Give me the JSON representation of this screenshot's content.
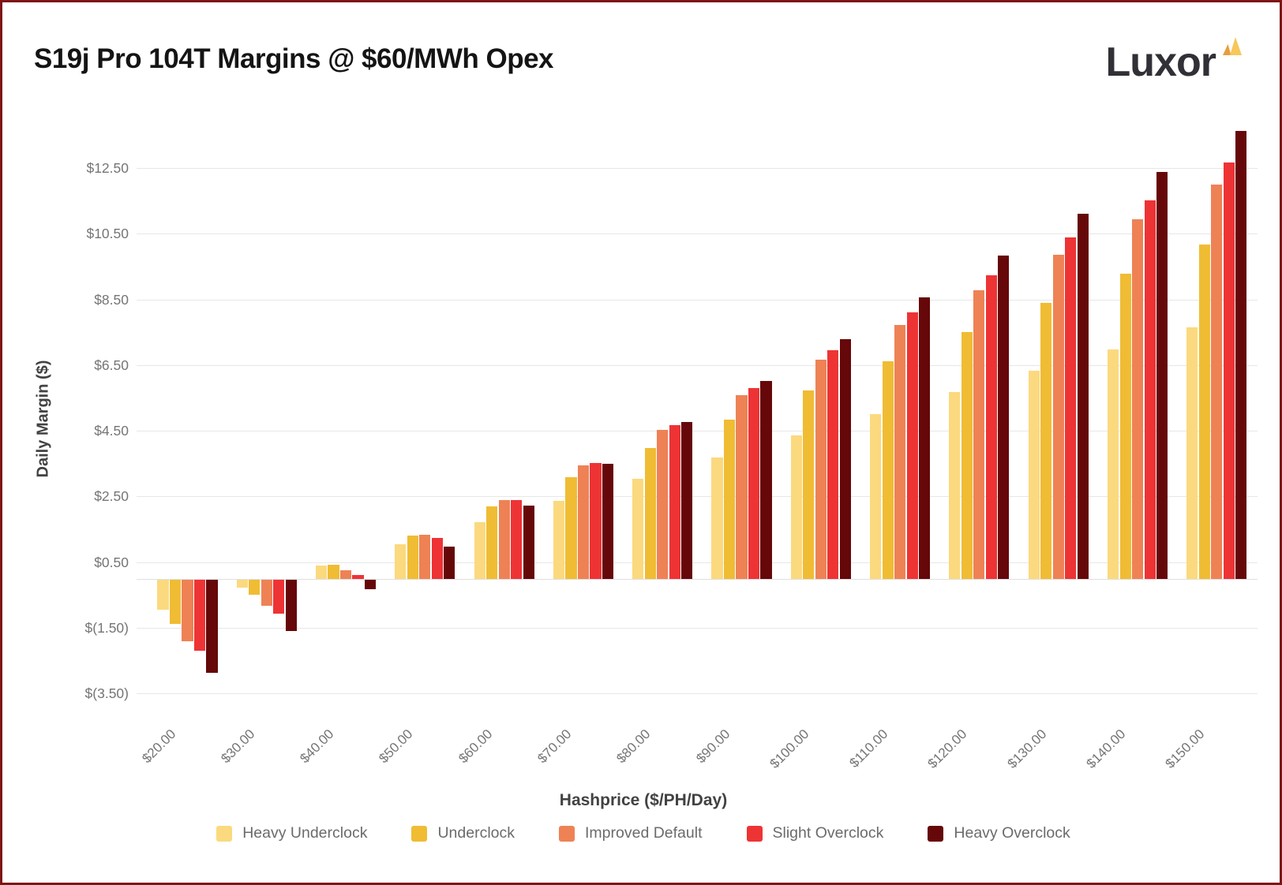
{
  "page": {
    "logo_text": "Luxor",
    "colors": {
      "border": "#7E1416",
      "background": "#FFFFFF",
      "grid": "#E7E7E7",
      "zero_line": "#E0E0E0",
      "tick_label": "#757575",
      "axis_title": "#424242",
      "title": "#141414",
      "logo_text": "#303036",
      "logo_mark_left": "#E79E3C",
      "logo_mark_right": "#F6C75B"
    }
  },
  "chart_data": {
    "type": "bar",
    "title": "S19j Pro 104T Margins @ $60/MWh Opex",
    "xlabel": "Hashprice ($/PH/Day)",
    "ylabel": "Daily Margin ($)",
    "grid": true,
    "legend_position": "bottom",
    "ylim": [
      -3.5,
      13.9
    ],
    "categories": [
      "$20.00",
      "$30.00",
      "$40.00",
      "$50.00",
      "$60.00",
      "$70.00",
      "$80.00",
      "$90.00",
      "$100.00",
      "$110.00",
      "$120.00",
      "$130.00",
      "$140.00",
      "$150.00"
    ],
    "yticks": [
      {
        "label": "$12.50",
        "value": 12.5
      },
      {
        "label": "$10.50",
        "value": 10.5
      },
      {
        "label": "$8.50",
        "value": 8.5
      },
      {
        "label": "$6.50",
        "value": 6.5
      },
      {
        "label": "$4.50",
        "value": 4.5
      },
      {
        "label": "$2.50",
        "value": 2.5
      },
      {
        "label": "$0.50",
        "value": 0.5
      },
      {
        "label": "$(1.50)",
        "value": -1.5
      },
      {
        "label": "$(3.50)",
        "value": -3.5
      }
    ],
    "series": [
      {
        "name": "Heavy Underclock",
        "color": "#FBD97E",
        "values": [
          -0.92,
          -0.26,
          0.4,
          1.06,
          1.71,
          2.37,
          3.03,
          3.69,
          4.35,
          5.01,
          5.67,
          6.33,
          6.99,
          7.65
        ]
      },
      {
        "name": "Underclock",
        "color": "#F0BC34",
        "values": [
          -1.36,
          -0.47,
          0.42,
          1.31,
          2.19,
          3.08,
          3.97,
          4.85,
          5.74,
          6.63,
          7.51,
          8.4,
          9.29,
          10.18
        ]
      },
      {
        "name": "Improved Default",
        "color": "#EE8255",
        "values": [
          -1.88,
          -0.81,
          0.26,
          1.33,
          2.39,
          3.46,
          4.53,
          5.59,
          6.66,
          7.73,
          8.79,
          9.86,
          10.93,
          11.99
        ]
      },
      {
        "name": "Slight Overclock",
        "color": "#EE3335",
        "values": [
          -2.18,
          -1.04,
          0.1,
          1.25,
          2.39,
          3.53,
          4.67,
          5.81,
          6.95,
          8.1,
          9.24,
          10.38,
          11.52,
          12.66
        ]
      },
      {
        "name": "Heavy Overclock",
        "color": "#660709",
        "values": [
          -2.84,
          -1.57,
          -0.3,
          0.97,
          2.23,
          3.5,
          4.77,
          6.03,
          7.3,
          8.57,
          9.83,
          11.1,
          12.37,
          13.63
        ]
      }
    ]
  }
}
